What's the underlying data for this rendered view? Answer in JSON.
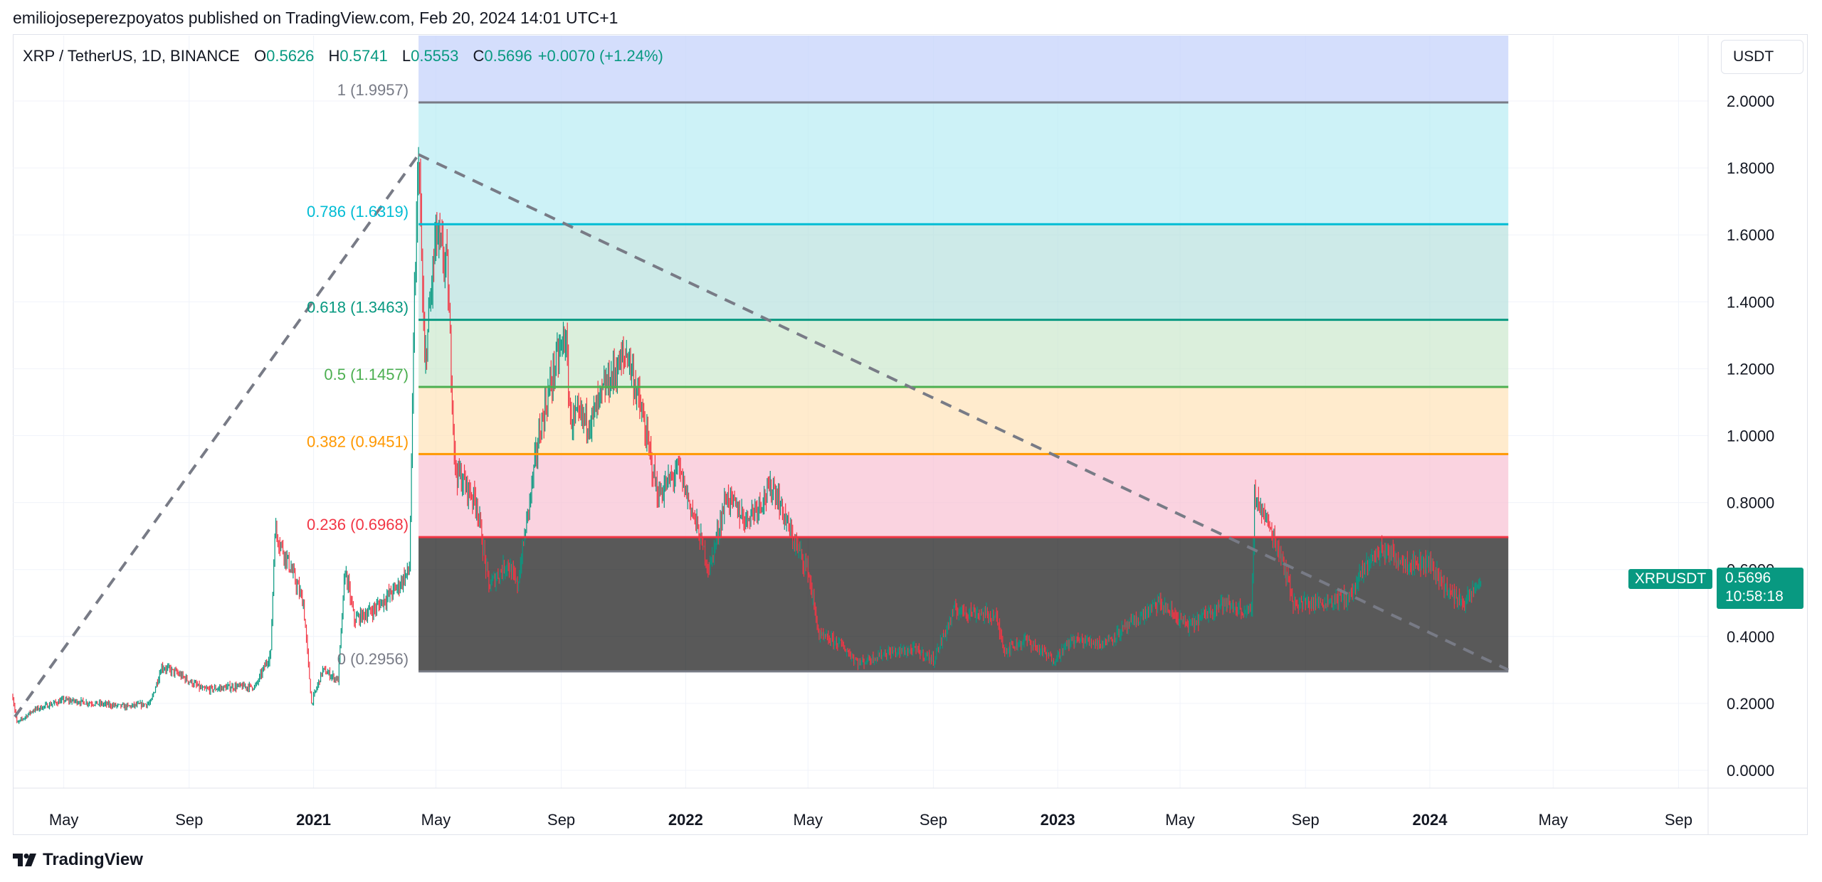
{
  "header": {
    "publisher_line": "emiliojoseperezpoyatos published on TradingView.com, Feb 20, 2024 14:01 UTC+1"
  },
  "legend": {
    "symbol": "XRP / TetherUS, 1D, BINANCE",
    "open_label": "O",
    "open": "0.5626",
    "high_label": "H",
    "high": "0.5741",
    "low_label": "L",
    "low": "0.5553",
    "close_label": "C",
    "close": "0.5696",
    "change": "+0.0070 (+1.24%)"
  },
  "toolbar": {
    "currency": "USDT"
  },
  "last_price": {
    "ticker": "XRPUSDT",
    "price": "0.5696",
    "countdown": "10:58:18"
  },
  "footer": {
    "brand": "TradingView"
  },
  "colors": {
    "up": "#089981",
    "down": "#f23645",
    "grid": "#f0f3fa",
    "fib_1": "#787b86",
    "fib_0786": "#00bcd4",
    "fib_0618": "#089981",
    "fib_05": "#4caf50",
    "fib_0382": "#ff9800",
    "fib_0236": "#f23645",
    "fib_0": "#787b86",
    "dashed_trend": "#787b86"
  },
  "chart_data": {
    "type": "candlestick",
    "symbol": "XRP / TetherUS",
    "interval": "1D",
    "exchange": "BINANCE",
    "y_axis": {
      "ticks": [
        "2.0000",
        "1.8000",
        "1.6000",
        "1.4000",
        "1.2000",
        "1.0000",
        "0.8000",
        "0.6000",
        "0.4000",
        "0.2000",
        "0.0000"
      ],
      "ylim": [
        -0.09,
        2.2
      ]
    },
    "x_axis": {
      "ticks": [
        {
          "label": "May",
          "date": "2020-05-01",
          "bold": false
        },
        {
          "label": "Sep",
          "date": "2020-09-01",
          "bold": false
        },
        {
          "label": "2021",
          "date": "2021-01-01",
          "bold": true
        },
        {
          "label": "May",
          "date": "2021-05-01",
          "bold": false
        },
        {
          "label": "Sep",
          "date": "2021-09-01",
          "bold": false
        },
        {
          "label": "2022",
          "date": "2022-01-01",
          "bold": true
        },
        {
          "label": "May",
          "date": "2022-05-01",
          "bold": false
        },
        {
          "label": "Sep",
          "date": "2022-09-01",
          "bold": false
        },
        {
          "label": "2023",
          "date": "2023-01-01",
          "bold": true
        },
        {
          "label": "May",
          "date": "2023-05-01",
          "bold": false
        },
        {
          "label": "Sep",
          "date": "2023-09-01",
          "bold": false
        },
        {
          "label": "2024",
          "date": "2024-01-01",
          "bold": true
        },
        {
          "label": "May",
          "date": "2024-05-01",
          "bold": false
        },
        {
          "label": "Sep",
          "date": "2024-09-01",
          "bold": false
        }
      ],
      "xlim": [
        "2020-03-12",
        "2024-09-30"
      ]
    },
    "grid": true,
    "fibonacci": {
      "start_date": "2021-04-14",
      "end_date": "2024-03-18",
      "levels": [
        {
          "ratio": "1",
          "label": "1 (1.9957)",
          "price": 1.9957,
          "color": "#787b86",
          "fill": "#d1d4dc"
        },
        {
          "ratio": "0.786",
          "label": "0.786 (1.6319)",
          "price": 1.6319,
          "color": "#00bcd4",
          "fill": "#b2ebf2"
        },
        {
          "ratio": "0.618",
          "label": "0.618 (1.3463)",
          "price": 1.3463,
          "color": "#089981",
          "fill": "#b2dfdb"
        },
        {
          "ratio": "0.5",
          "label": "0.5 (1.1457)",
          "price": 1.1457,
          "color": "#4caf50",
          "fill": "#c8e6c9"
        },
        {
          "ratio": "0.382",
          "label": "0.382 (0.9451)",
          "price": 0.9451,
          "color": "#ff9800",
          "fill": "#ffe0b2"
        },
        {
          "ratio": "0.236",
          "label": "0.236 (0.6968)",
          "price": 0.6968,
          "color": "#f23645",
          "fill": "#f8bbd0"
        },
        {
          "ratio": "0",
          "label": "0 (0.2956)",
          "price": 0.2956,
          "color": "#787b86",
          "fill": null
        }
      ],
      "top_band_fill": "#c5d3fb"
    },
    "trend_lines": [
      {
        "from": {
          "date": "2020-03-14",
          "price": 0.16
        },
        "to": {
          "date": "2021-04-14",
          "price": 1.84
        }
      },
      {
        "from": {
          "date": "2021-04-14",
          "price": 1.84
        },
        "to": {
          "date": "2024-03-18",
          "price": 0.3
        }
      }
    ],
    "price_path": [
      [
        "2020-03-12",
        0.22
      ],
      [
        "2020-03-16",
        0.14
      ],
      [
        "2020-04-01",
        0.18
      ],
      [
        "2020-05-01",
        0.21
      ],
      [
        "2020-06-01",
        0.2
      ],
      [
        "2020-07-01",
        0.19
      ],
      [
        "2020-07-25",
        0.2
      ],
      [
        "2020-08-05",
        0.31
      ],
      [
        "2020-08-20",
        0.29
      ],
      [
        "2020-09-15",
        0.24
      ],
      [
        "2020-10-15",
        0.25
      ],
      [
        "2020-11-05",
        0.25
      ],
      [
        "2020-11-20",
        0.35
      ],
      [
        "2020-11-24",
        0.72
      ],
      [
        "2020-12-10",
        0.6
      ],
      [
        "2020-12-22",
        0.5
      ],
      [
        "2020-12-30",
        0.2
      ],
      [
        "2021-01-10",
        0.3
      ],
      [
        "2021-01-25",
        0.27
      ],
      [
        "2021-02-01",
        0.6
      ],
      [
        "2021-02-10",
        0.45
      ],
      [
        "2021-03-01",
        0.48
      ],
      [
        "2021-03-25",
        0.55
      ],
      [
        "2021-04-05",
        0.6
      ],
      [
        "2021-04-10",
        1.4
      ],
      [
        "2021-04-14",
        1.85
      ],
      [
        "2021-04-20",
        1.2
      ],
      [
        "2021-05-01",
        1.6
      ],
      [
        "2021-05-12",
        1.5
      ],
      [
        "2021-05-20",
        0.9
      ],
      [
        "2021-06-10",
        0.8
      ],
      [
        "2021-06-22",
        0.55
      ],
      [
        "2021-07-10",
        0.62
      ],
      [
        "2021-07-20",
        0.55
      ],
      [
        "2021-08-10",
        1.0
      ],
      [
        "2021-08-25",
        1.2
      ],
      [
        "2021-09-05",
        1.3
      ],
      [
        "2021-09-10",
        1.05
      ],
      [
        "2021-10-01",
        1.05
      ],
      [
        "2021-10-15",
        1.15
      ],
      [
        "2021-11-05",
        1.25
      ],
      [
        "2021-11-20",
        1.05
      ],
      [
        "2021-12-05",
        0.82
      ],
      [
        "2021-12-25",
        0.9
      ],
      [
        "2022-01-10",
        0.75
      ],
      [
        "2022-01-24",
        0.6
      ],
      [
        "2022-02-10",
        0.82
      ],
      [
        "2022-03-01",
        0.75
      ],
      [
        "2022-03-28",
        0.85
      ],
      [
        "2022-04-15",
        0.7
      ],
      [
        "2022-05-01",
        0.6
      ],
      [
        "2022-05-12",
        0.4
      ],
      [
        "2022-06-01",
        0.38
      ],
      [
        "2022-06-20",
        0.32
      ],
      [
        "2022-07-15",
        0.35
      ],
      [
        "2022-08-15",
        0.36
      ],
      [
        "2022-09-01",
        0.33
      ],
      [
        "2022-09-22",
        0.48
      ],
      [
        "2022-10-15",
        0.47
      ],
      [
        "2022-11-01",
        0.46
      ],
      [
        "2022-11-10",
        0.36
      ],
      [
        "2022-12-01",
        0.39
      ],
      [
        "2022-12-28",
        0.33
      ],
      [
        "2023-01-15",
        0.39
      ],
      [
        "2023-02-15",
        0.38
      ],
      [
        "2023-03-20",
        0.45
      ],
      [
        "2023-04-10",
        0.5
      ],
      [
        "2023-05-10",
        0.43
      ],
      [
        "2023-06-10",
        0.5
      ],
      [
        "2023-07-10",
        0.47
      ],
      [
        "2023-07-13",
        0.82
      ],
      [
        "2023-07-20",
        0.78
      ],
      [
        "2023-08-10",
        0.63
      ],
      [
        "2023-08-20",
        0.5
      ],
      [
        "2023-09-15",
        0.5
      ],
      [
        "2023-10-15",
        0.52
      ],
      [
        "2023-11-01",
        0.62
      ],
      [
        "2023-11-15",
        0.66
      ],
      [
        "2023-12-10",
        0.62
      ],
      [
        "2024-01-01",
        0.62
      ],
      [
        "2024-01-20",
        0.53
      ],
      [
        "2024-02-05",
        0.5
      ],
      [
        "2024-02-20",
        0.5696
      ]
    ]
  }
}
